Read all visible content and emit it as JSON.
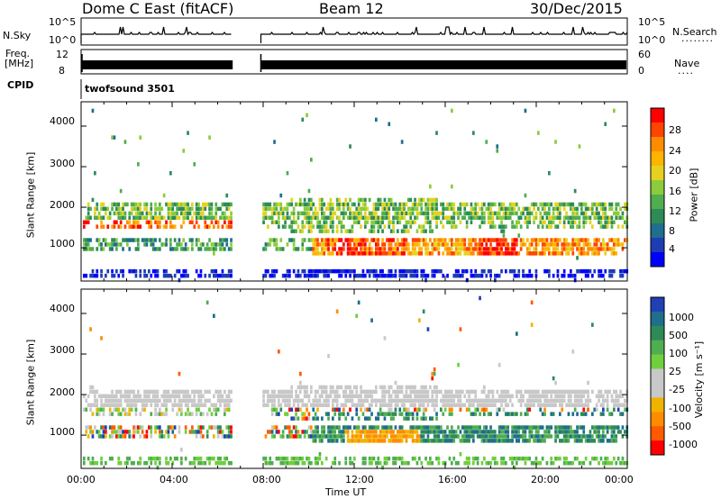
{
  "header": {
    "station": "Dome C East (fitACF)",
    "beam": "Beam 12",
    "date": "30/Dec/2015"
  },
  "panels": {
    "nsky_label": "N.Sky",
    "nsearch_label": "N.Search",
    "nsky_ticks": [
      "10^5",
      "10^0"
    ],
    "nsearch_ticks": [
      "10^5",
      "10^0"
    ],
    "freq_label": "Freq.",
    "freq_unit": "[MHz]",
    "freq_ticks": [
      "12",
      "8"
    ],
    "nave_label": "Nave",
    "nave_ticks": [
      "60",
      "0"
    ],
    "cpid_label": "CPID",
    "cpid_value": "twofsound 3501"
  },
  "chart_data": {
    "type": "heatmap",
    "xlabel": "Time UT",
    "x_ticks": [
      "00:00",
      "04:00",
      "08:00",
      "12:00",
      "16:00",
      "20:00",
      "00:00"
    ],
    "x_range_hours": [
      0,
      24
    ],
    "data_gap_hours": [
      6.7,
      7.9
    ],
    "power": {
      "ylabel": "Slant Range [km]",
      "y_ticks": [
        1000,
        2000,
        3000,
        4000
      ],
      "ylim": [
        180,
        4600
      ],
      "colorbar_label": "Power [dB]",
      "colorbar_ticks": [
        "28",
        "24",
        "20",
        "16",
        "12",
        "8",
        "4"
      ],
      "colors": [
        "#ff0000",
        "#ff4400",
        "#ff8c00",
        "#ffb400",
        "#e6d21e",
        "#8ccc3c",
        "#4fae4f",
        "#2e8b57",
        "#1e6e8c",
        "#1e3cb4",
        "#0000ff"
      ]
    },
    "velocity": {
      "ylabel": "Slant Range [km]",
      "y_ticks": [
        1000,
        2000,
        3000,
        4000
      ],
      "ylim": [
        180,
        4600
      ],
      "colorbar_label": "Velocity [m s⁻¹]",
      "colorbar_ticks": [
        "1000",
        "500",
        "100",
        "25",
        "-25",
        "-100",
        "-500",
        "-1000"
      ],
      "colors": [
        "#2040b4",
        "#1e6e8c",
        "#2e8b57",
        "#4fae4f",
        "#6fcf3c",
        "#c8c8c8",
        "#c8c8c8",
        "#f0b400",
        "#ff8c00",
        "#ff5a00",
        "#ff0000"
      ]
    }
  }
}
